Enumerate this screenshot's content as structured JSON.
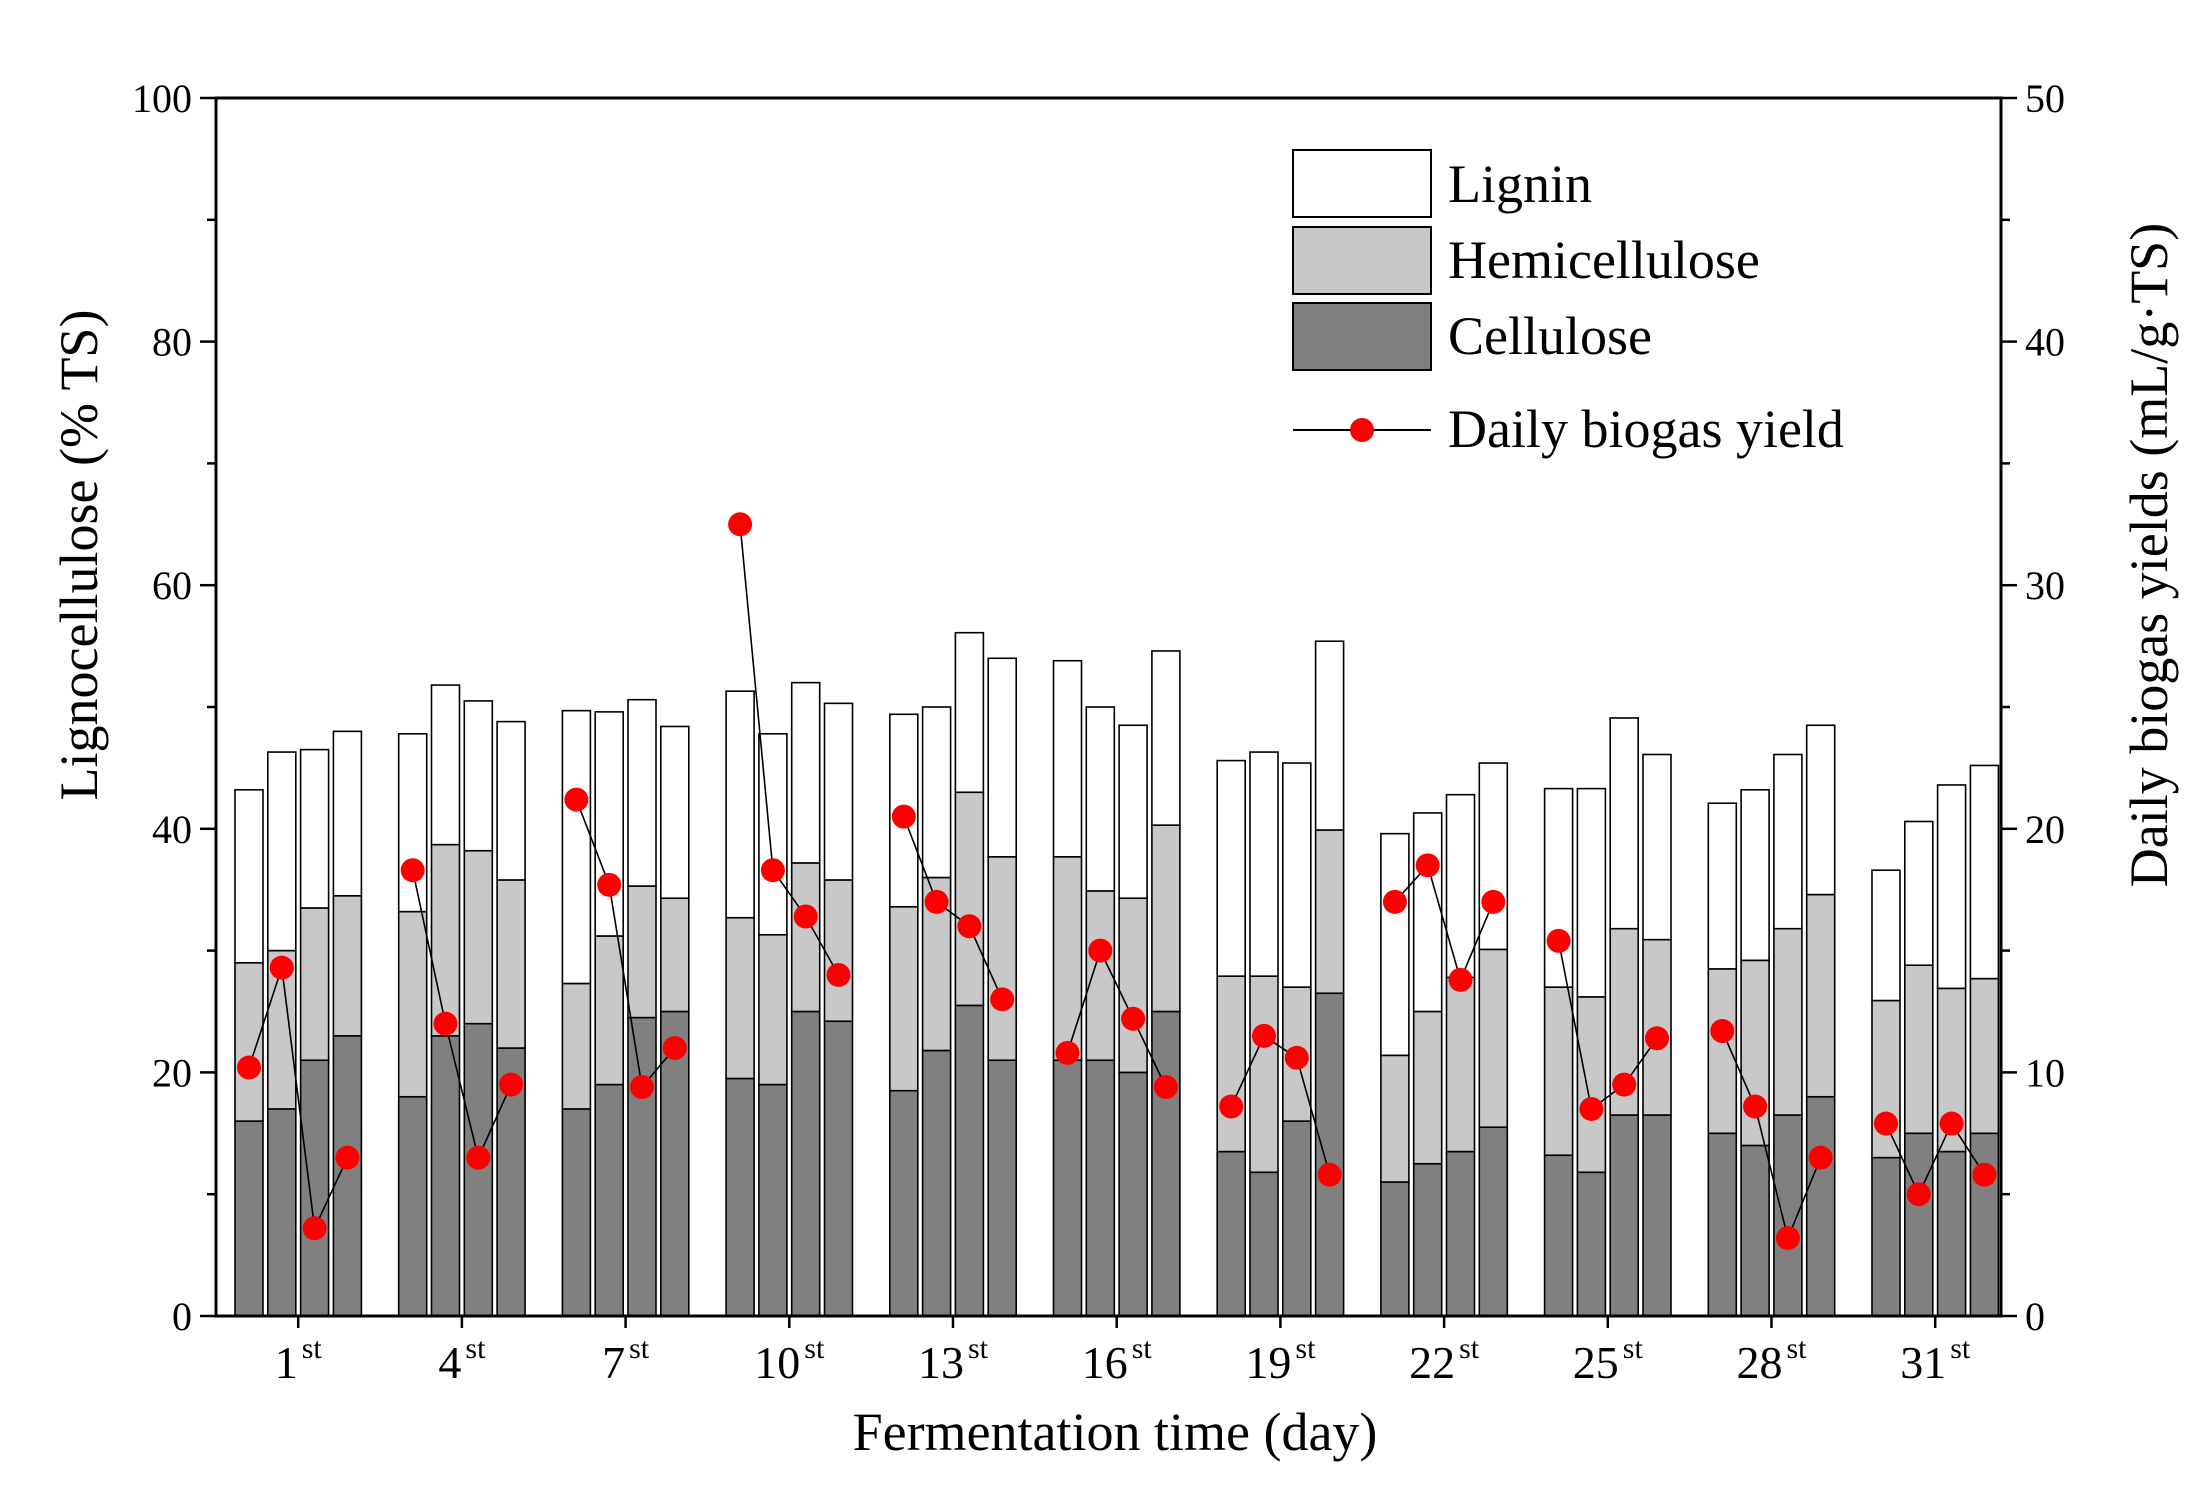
{
  "chart_data": {
    "type": "bar",
    "subtype": "stacked-bar-with-line-secondary-axis",
    "title": "",
    "xlabel": "Fermentation time (day)",
    "ylabel": "Lignocellulose (% TS)",
    "ylabel_right": "Daily biogas yields (mL/g·TS)",
    "ylim": [
      0,
      100
    ],
    "ylim_right": [
      0,
      50
    ],
    "yticks": [
      0,
      20,
      40,
      60,
      80,
      100
    ],
    "yticks_right": [
      0,
      10,
      20,
      30,
      40,
      50
    ],
    "grid": false,
    "legend_position": "top-right",
    "group_labels": [
      {
        "num": "1",
        "sup": "st"
      },
      {
        "num": "4",
        "sup": "st"
      },
      {
        "num": "7",
        "sup": "st"
      },
      {
        "num": "10",
        "sup": "st"
      },
      {
        "num": "13",
        "sup": "st"
      },
      {
        "num": "16",
        "sup": "st"
      },
      {
        "num": "19",
        "sup": "st"
      },
      {
        "num": "22",
        "sup": "st"
      },
      {
        "num": "25",
        "sup": "st"
      },
      {
        "num": "28",
        "sup": "st"
      },
      {
        "num": "31",
        "sup": "st"
      }
    ],
    "bars_per_group": 4,
    "series": [
      {
        "name": "Cellulose",
        "color": "#808080",
        "values": [
          16,
          17,
          21,
          23,
          18,
          23,
          24,
          22,
          17,
          19,
          24.5,
          25,
          19.5,
          19,
          25,
          24.2,
          18.5,
          21.8,
          25.5,
          21,
          21,
          21,
          20,
          25,
          13.5,
          11.8,
          16,
          26.5,
          11,
          12.5,
          13.5,
          15.5,
          13.2,
          11.8,
          16.5,
          16.5,
          15,
          14,
          16.5,
          18,
          13,
          15,
          13.5,
          15
        ]
      },
      {
        "name": "Hemicellulose",
        "color": "#c8c8c8",
        "values": [
          13,
          13,
          12.5,
          11.5,
          15.2,
          15.7,
          14.2,
          13.8,
          10.3,
          12.2,
          10.8,
          9.3,
          13.2,
          12.3,
          12.2,
          11.6,
          15.1,
          14.2,
          17.5,
          16.7,
          16.7,
          13.9,
          14.3,
          15.3,
          14.4,
          16.1,
          11,
          13.4,
          10.4,
          12.5,
          14.3,
          14.6,
          13.8,
          14.4,
          15.3,
          14.4,
          13.5,
          15.2,
          15.3,
          16.6,
          12.9,
          13.8,
          13.4,
          12.7
        ]
      },
      {
        "name": "Lignin",
        "color": "#ffffff",
        "values": [
          14.2,
          16.3,
          13,
          13.5,
          14.6,
          13.1,
          12.3,
          13,
          22.4,
          18.4,
          15.3,
          14.1,
          18.6,
          16.5,
          14.8,
          14.5,
          15.8,
          14,
          13.1,
          16.3,
          16.1,
          15.1,
          14.2,
          14.3,
          17.7,
          18.4,
          18.4,
          15.5,
          18.2,
          16.3,
          15,
          15.3,
          16.3,
          17.1,
          17.3,
          15.2,
          13.6,
          14,
          14.3,
          13.9,
          10.7,
          11.8,
          16.7,
          17.5
        ]
      }
    ],
    "line_series": {
      "name": "Daily biogas yield",
      "color": "#ff0000",
      "values": [
        10.2,
        14.3,
        3.6,
        6.5,
        18.3,
        12,
        6.5,
        9.5,
        21.2,
        17.7,
        9.4,
        11,
        32.5,
        18.3,
        16.4,
        14,
        20.5,
        17,
        16,
        13,
        10.8,
        15,
        12.2,
        9.4,
        8.6,
        11.5,
        10.6,
        5.8,
        17,
        18.5,
        13.8,
        17,
        15.4,
        8.5,
        9.5,
        11.4,
        11.7,
        8.6,
        3.2,
        6.5,
        7.9,
        5,
        7.9,
        5.8
      ]
    }
  }
}
